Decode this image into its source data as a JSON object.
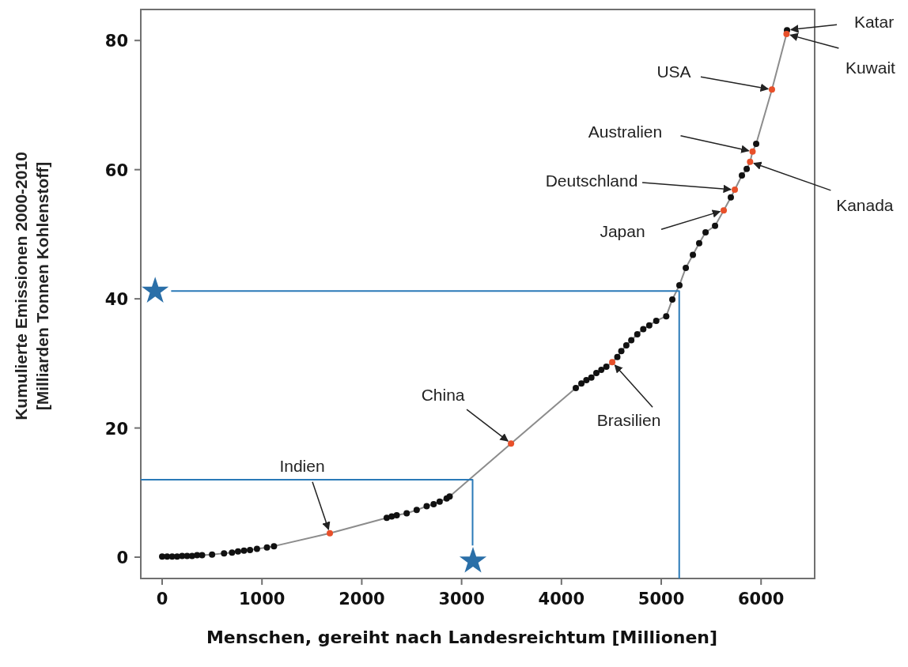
{
  "chart_data": {
    "type": "scatter",
    "xlabel": "Menschen, gereiht nach Landesreichtum [Millionen]",
    "ylabel": "Kumulierte Emissionen  2000-2010\n[Milliarden Tonnen Kohlenstoff]",
    "xlim": [
      -214,
      6537
    ],
    "ylim": [
      -3.3,
      84.8
    ],
    "xticks": [
      0,
      1000,
      2000,
      3000,
      4000,
      5000,
      6000
    ],
    "yticks": [
      0,
      20,
      40,
      60,
      80
    ],
    "grid": false,
    "series": [
      {
        "type": "line",
        "color": "#8c8c8c",
        "marker": "none",
        "x": [
          0,
          50,
          100,
          150,
          200,
          250,
          300,
          350,
          400,
          500,
          620,
          700,
          760,
          820,
          880,
          950,
          1050,
          1120,
          1680,
          2250,
          2300,
          2350,
          2450,
          2550,
          2650,
          2720,
          2780,
          2850,
          2880,
          3495,
          4144,
          4200,
          4250,
          4300,
          4350,
          4400,
          4450,
          4509,
          4560,
          4600,
          4650,
          4700,
          4760,
          4820,
          4880,
          4950,
          5050,
          5111,
          5182,
          5246,
          5317,
          5380,
          5444,
          5539,
          5626,
          5697,
          5737,
          5808,
          5856,
          5890,
          5915,
          5951,
          6109,
          6255,
          6260
        ],
        "values": [
          0.1,
          0.1,
          0.1,
          0.1,
          0.2,
          0.2,
          0.2,
          0.3,
          0.3,
          0.4,
          0.6,
          0.7,
          0.9,
          1.0,
          1.1,
          1.3,
          1.5,
          1.7,
          3.7,
          6.1,
          6.3,
          6.5,
          6.8,
          7.3,
          7.9,
          8.2,
          8.6,
          9.1,
          9.4,
          17.6,
          26.2,
          26.9,
          27.4,
          27.8,
          28.5,
          29.0,
          29.5,
          30.2,
          31.0,
          31.9,
          32.8,
          33.6,
          34.5,
          35.3,
          35.9,
          36.6,
          37.3,
          39.9,
          42.1,
          44.8,
          46.8,
          48.6,
          50.3,
          51.3,
          53.7,
          55.7,
          56.9,
          59.1,
          60.1,
          61.2,
          62.8,
          64.0,
          72.4,
          81.0,
          81.6
        ]
      },
      {
        "color": "#111111",
        "marker": "circle",
        "x": [
          0,
          50,
          100,
          150,
          200,
          250,
          300,
          350,
          400,
          500,
          620,
          700,
          760,
          820,
          880,
          950,
          1050,
          1120,
          2250,
          2300,
          2350,
          2450,
          2550,
          2650,
          2720,
          2780,
          2850,
          2880,
          4144,
          4200,
          4250,
          4300,
          4350,
          4400,
          4450,
          4560,
          4600,
          4650,
          4700,
          4760,
          4820,
          4880,
          4950,
          5050,
          5111,
          5182,
          5246,
          5317,
          5380,
          5444,
          5539,
          5697,
          5808,
          5856,
          5951,
          6260
        ],
        "values": [
          0.1,
          0.1,
          0.1,
          0.1,
          0.2,
          0.2,
          0.2,
          0.3,
          0.3,
          0.4,
          0.6,
          0.7,
          0.9,
          1.0,
          1.1,
          1.3,
          1.5,
          1.7,
          6.1,
          6.3,
          6.5,
          6.8,
          7.3,
          7.9,
          8.2,
          8.6,
          9.1,
          9.4,
          26.2,
          26.9,
          27.4,
          27.8,
          28.5,
          29.0,
          29.5,
          31.0,
          31.9,
          32.8,
          33.6,
          34.5,
          35.3,
          35.9,
          36.6,
          37.3,
          39.9,
          42.1,
          44.8,
          46.8,
          48.6,
          50.3,
          51.3,
          55.7,
          59.1,
          60.1,
          64.0,
          81.6
        ]
      },
      {
        "color": "#e8502a",
        "marker": "circle",
        "x": [
          1680,
          3495,
          4509,
          5626,
          5737,
          5890,
          5915,
          6109,
          6255
        ],
        "values": [
          3.7,
          17.6,
          30.2,
          53.7,
          56.9,
          61.2,
          62.8,
          72.4,
          81.0
        ]
      },
      {
        "type": "line",
        "color": "#2a7ab8",
        "marker": "none",
        "x": [
          90,
          5180,
          5180
        ],
        "values": [
          41.2,
          41.2,
          -3.3
        ]
      },
      {
        "type": "line",
        "color": "#2a7ab8",
        "marker": "none",
        "x": [
          -214,
          3110,
          3110
        ],
        "values": [
          12,
          12,
          1.8
        ]
      },
      {
        "color": "#2a6fa8",
        "marker": "star",
        "x": [
          -70,
          3114
        ],
        "values": [
          41.2,
          -0.6
        ]
      }
    ],
    "annotations": [
      {
        "text": "Katar",
        "x": 6260,
        "y": 81.6
      },
      {
        "text": "Kuwait",
        "x": 6255,
        "y": 81.0
      },
      {
        "text": "USA",
        "x": 6109,
        "y": 72.4
      },
      {
        "text": "Australien",
        "x": 5915,
        "y": 62.8
      },
      {
        "text": "Deutschland",
        "x": 5737,
        "y": 56.9
      },
      {
        "text": "Kanada",
        "x": 5890,
        "y": 61.2
      },
      {
        "text": "Japan",
        "x": 5626,
        "y": 53.7
      },
      {
        "text": "Brasilien",
        "x": 4509,
        "y": 30.2
      },
      {
        "text": "China",
        "x": 3495,
        "y": 17.6
      },
      {
        "text": "Indien",
        "x": 1680,
        "y": 3.7
      }
    ]
  }
}
